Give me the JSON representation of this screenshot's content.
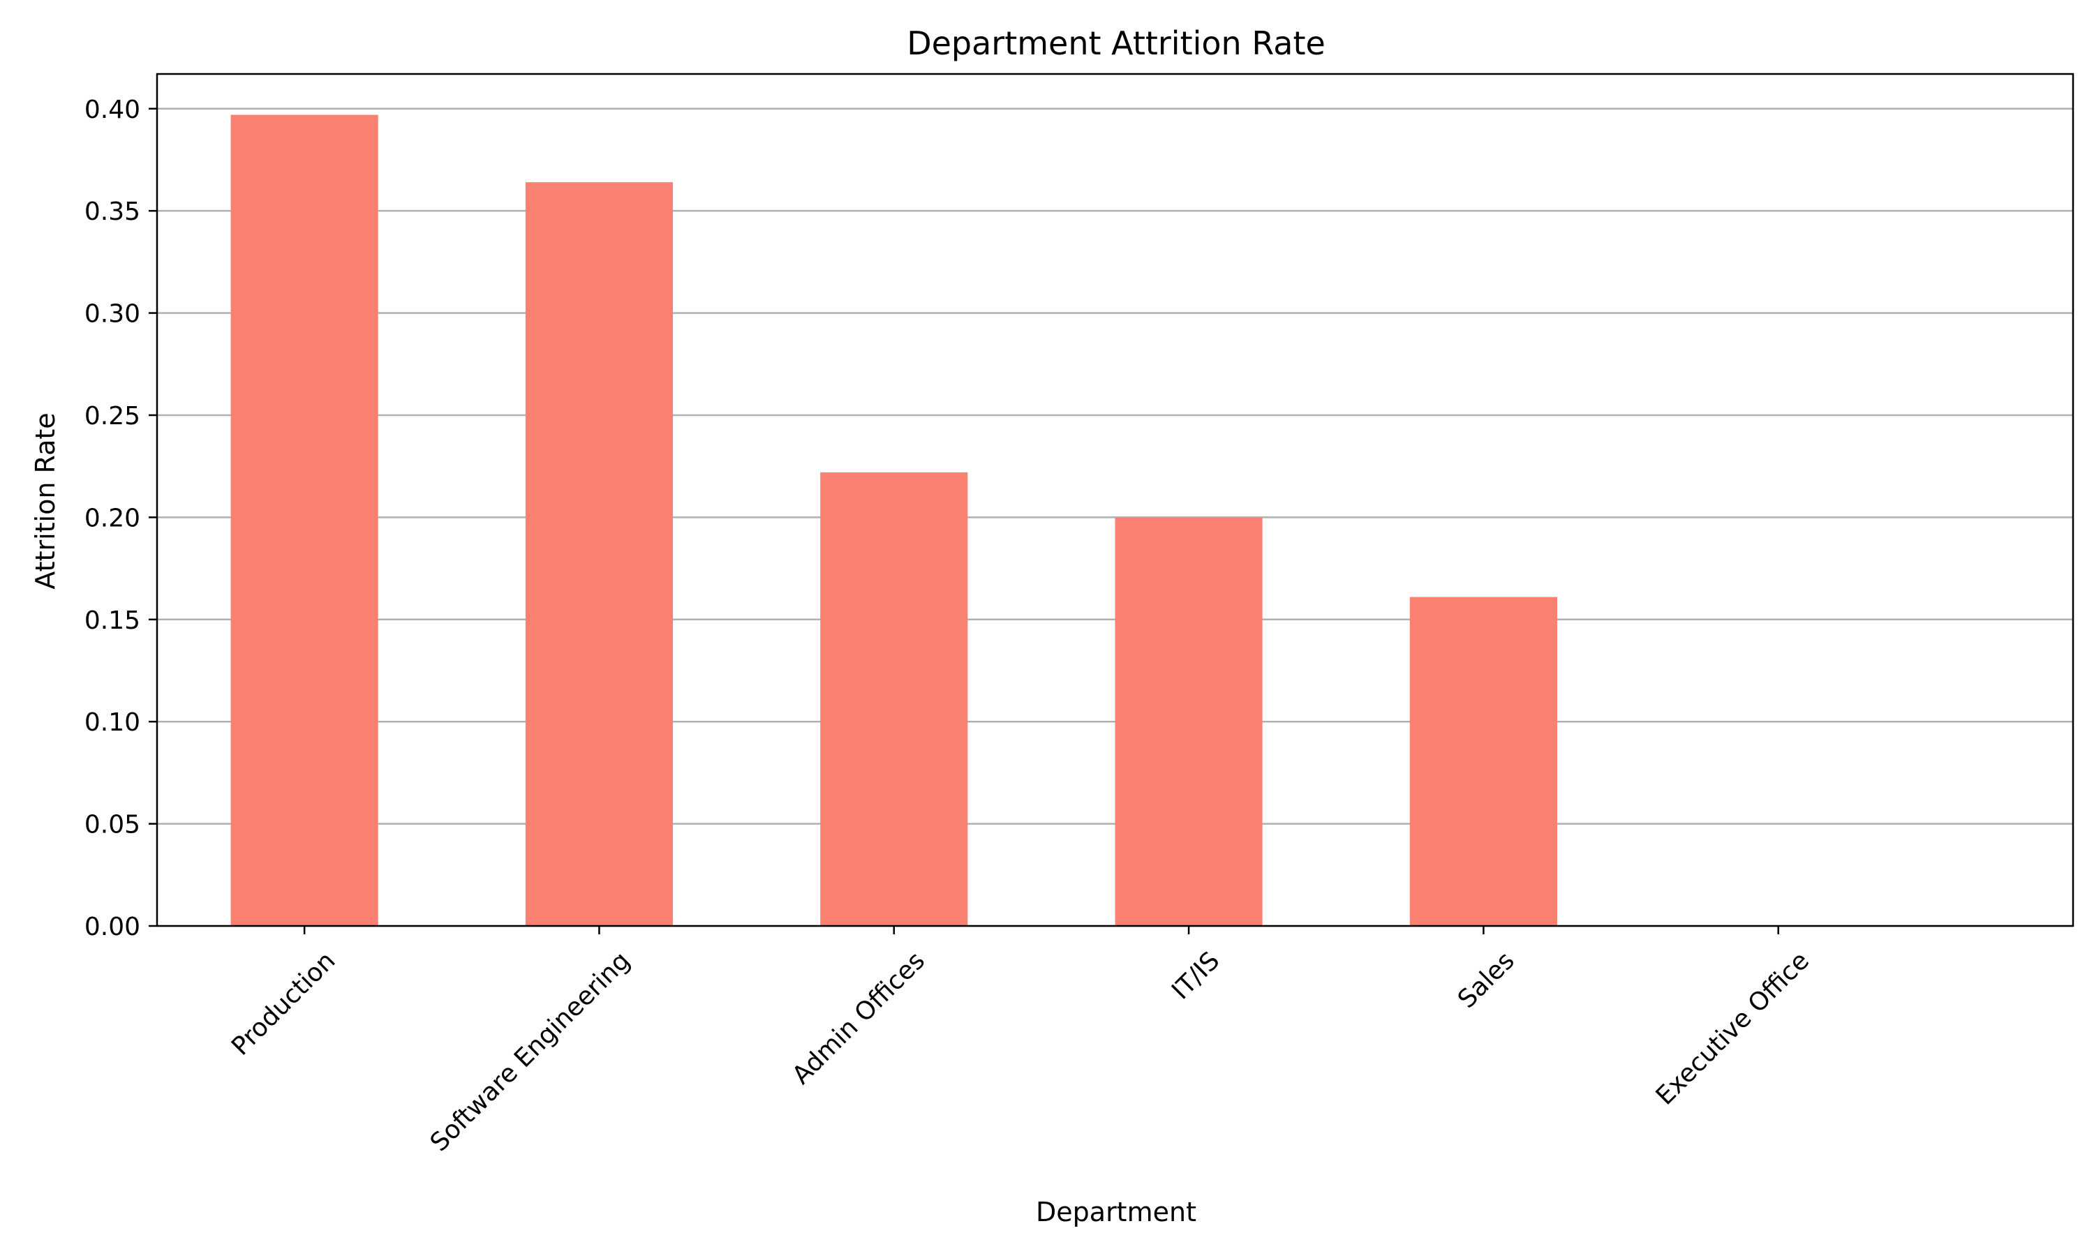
{
  "chart_data": {
    "type": "bar",
    "title": "Department Attrition Rate",
    "xlabel": "Department",
    "ylabel": "Attrition Rate",
    "categories": [
      "Production",
      "Software Engineering",
      "Admin Offices",
      "IT/IS",
      "Sales",
      "Executive Office"
    ],
    "values": [
      0.397,
      0.364,
      0.222,
      0.2,
      0.161,
      0.0
    ],
    "ylim": [
      0,
      0.417
    ],
    "yticks": [
      0.0,
      0.05,
      0.1,
      0.15,
      0.2,
      0.25,
      0.3,
      0.35,
      0.4
    ],
    "ytick_labels": [
      "0.00",
      "0.05",
      "0.10",
      "0.15",
      "0.20",
      "0.25",
      "0.30",
      "0.35",
      "0.40"
    ],
    "grid": "y",
    "bar_color": "#FA8072",
    "grid_color": "#b0b0b0"
  }
}
